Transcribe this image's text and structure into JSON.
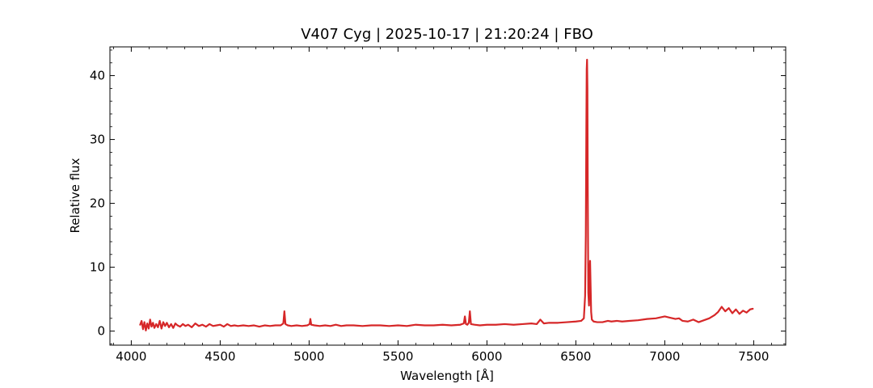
{
  "chart_data": {
    "type": "line",
    "title": "V407 Cyg | 2025-10-17 | 21:20:24 | FBO",
    "xlabel": "Wavelength [Å]",
    "ylabel": "Relative flux",
    "xlim": [
      3880,
      7680
    ],
    "ylim": [
      -2.2,
      44.5
    ],
    "xticks": [
      4000,
      4500,
      5000,
      5500,
      6000,
      6500,
      7000,
      7500
    ],
    "yticks": [
      0,
      10,
      20,
      30,
      40
    ],
    "minor_x_step": 100,
    "minor_y_step": 2,
    "grid": false,
    "legend": "none",
    "series": [
      {
        "color": "#d62728",
        "x": [
          4050,
          4058,
          4066,
          4074,
          4082,
          4090,
          4098,
          4106,
          4114,
          4122,
          4130,
          4140,
          4150,
          4160,
          4170,
          4180,
          4190,
          4200,
          4212,
          4224,
          4236,
          4248,
          4260,
          4275,
          4290,
          4305,
          4320,
          4340,
          4360,
          4380,
          4400,
          4420,
          4440,
          4460,
          4480,
          4500,
          4520,
          4540,
          4560,
          4580,
          4600,
          4630,
          4660,
          4690,
          4720,
          4750,
          4780,
          4810,
          4840,
          4855,
          4861,
          4867,
          4880,
          4900,
          4930,
          4960,
          4990,
          5003,
          5007,
          5012,
          5030,
          5060,
          5090,
          5120,
          5150,
          5180,
          5210,
          5250,
          5300,
          5350,
          5400,
          5450,
          5500,
          5550,
          5600,
          5650,
          5700,
          5750,
          5800,
          5850,
          5870,
          5876,
          5882,
          5890,
          5898,
          5904,
          5910,
          5930,
          5960,
          6000,
          6050,
          6100,
          6150,
          6200,
          6250,
          6280,
          6300,
          6320,
          6350,
          6400,
          6450,
          6500,
          6530,
          6545,
          6552,
          6556,
          6559,
          6561,
          6563,
          6565,
          6567,
          6570,
          6574,
          6577,
          6580,
          6583,
          6586,
          6590,
          6600,
          6620,
          6650,
          6680,
          6700,
          6730,
          6760,
          6800,
          6850,
          6900,
          6950,
          7000,
          7030,
          7060,
          7080,
          7100,
          7130,
          7160,
          7190,
          7220,
          7250,
          7280,
          7300,
          7320,
          7340,
          7360,
          7380,
          7400,
          7420,
          7440,
          7460,
          7480,
          7495
        ],
        "y": [
          1.0,
          1.6,
          0.3,
          1.4,
          0.1,
          1.2,
          0.4,
          1.8,
          0.7,
          1.3,
          0.5,
          1.1,
          0.6,
          1.6,
          0.4,
          1.4,
          0.8,
          1.3,
          0.6,
          1.1,
          0.5,
          1.2,
          0.9,
          0.7,
          1.1,
          0.8,
          1.0,
          0.6,
          1.2,
          0.8,
          1.0,
          0.7,
          1.1,
          0.8,
          0.9,
          1.0,
          0.7,
          1.1,
          0.8,
          0.9,
          0.8,
          0.9,
          0.8,
          0.9,
          0.7,
          0.9,
          0.8,
          0.9,
          0.9,
          1.2,
          3.1,
          1.1,
          0.9,
          0.8,
          0.9,
          0.8,
          0.9,
          1.1,
          1.9,
          1.0,
          0.9,
          0.8,
          0.9,
          0.8,
          1.0,
          0.8,
          0.9,
          0.9,
          0.8,
          0.9,
          0.9,
          0.8,
          0.9,
          0.8,
          1.0,
          0.9,
          0.9,
          1.0,
          0.9,
          1.0,
          1.2,
          2.3,
          1.1,
          1.0,
          1.3,
          3.1,
          1.1,
          1.0,
          0.9,
          1.0,
          1.0,
          1.1,
          1.0,
          1.1,
          1.2,
          1.1,
          1.8,
          1.2,
          1.3,
          1.3,
          1.4,
          1.5,
          1.6,
          2.0,
          5.5,
          15.0,
          32.0,
          41.0,
          42.5,
          38.0,
          22.0,
          6.0,
          4.0,
          9.0,
          11.0,
          7.0,
          3.0,
          1.8,
          1.5,
          1.4,
          1.4,
          1.6,
          1.5,
          1.6,
          1.5,
          1.6,
          1.7,
          1.9,
          2.0,
          2.3,
          2.1,
          1.9,
          2.0,
          1.6,
          1.5,
          1.8,
          1.4,
          1.7,
          2.0,
          2.5,
          3.0,
          3.8,
          3.1,
          3.6,
          2.8,
          3.4,
          2.7,
          3.2,
          2.9,
          3.4,
          3.5
        ]
      }
    ]
  }
}
